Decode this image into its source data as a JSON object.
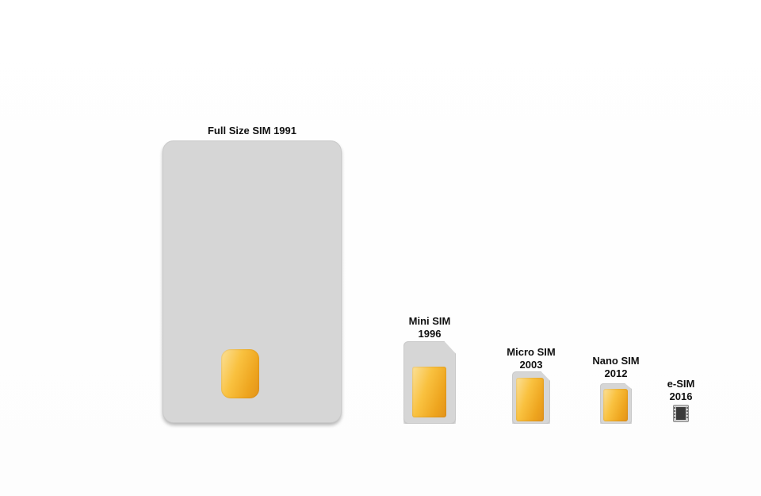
{
  "cards": {
    "full": {
      "title": "Full Size SIM",
      "year": "1991"
    },
    "mini": {
      "title": "Mini SIM",
      "year": "1996"
    },
    "micro": {
      "title": "Micro SIM",
      "year": "2003"
    },
    "nano": {
      "title": "Nano SIM",
      "year": "2012"
    },
    "esim": {
      "title": "e-SIM",
      "year": "2016"
    }
  },
  "colors": {
    "card": "#d6d6d6",
    "chip_light": "#fbe19a",
    "chip_dark": "#e3931b",
    "label": "#111111"
  },
  "icons": {
    "esim": "esim-chip-icon"
  }
}
